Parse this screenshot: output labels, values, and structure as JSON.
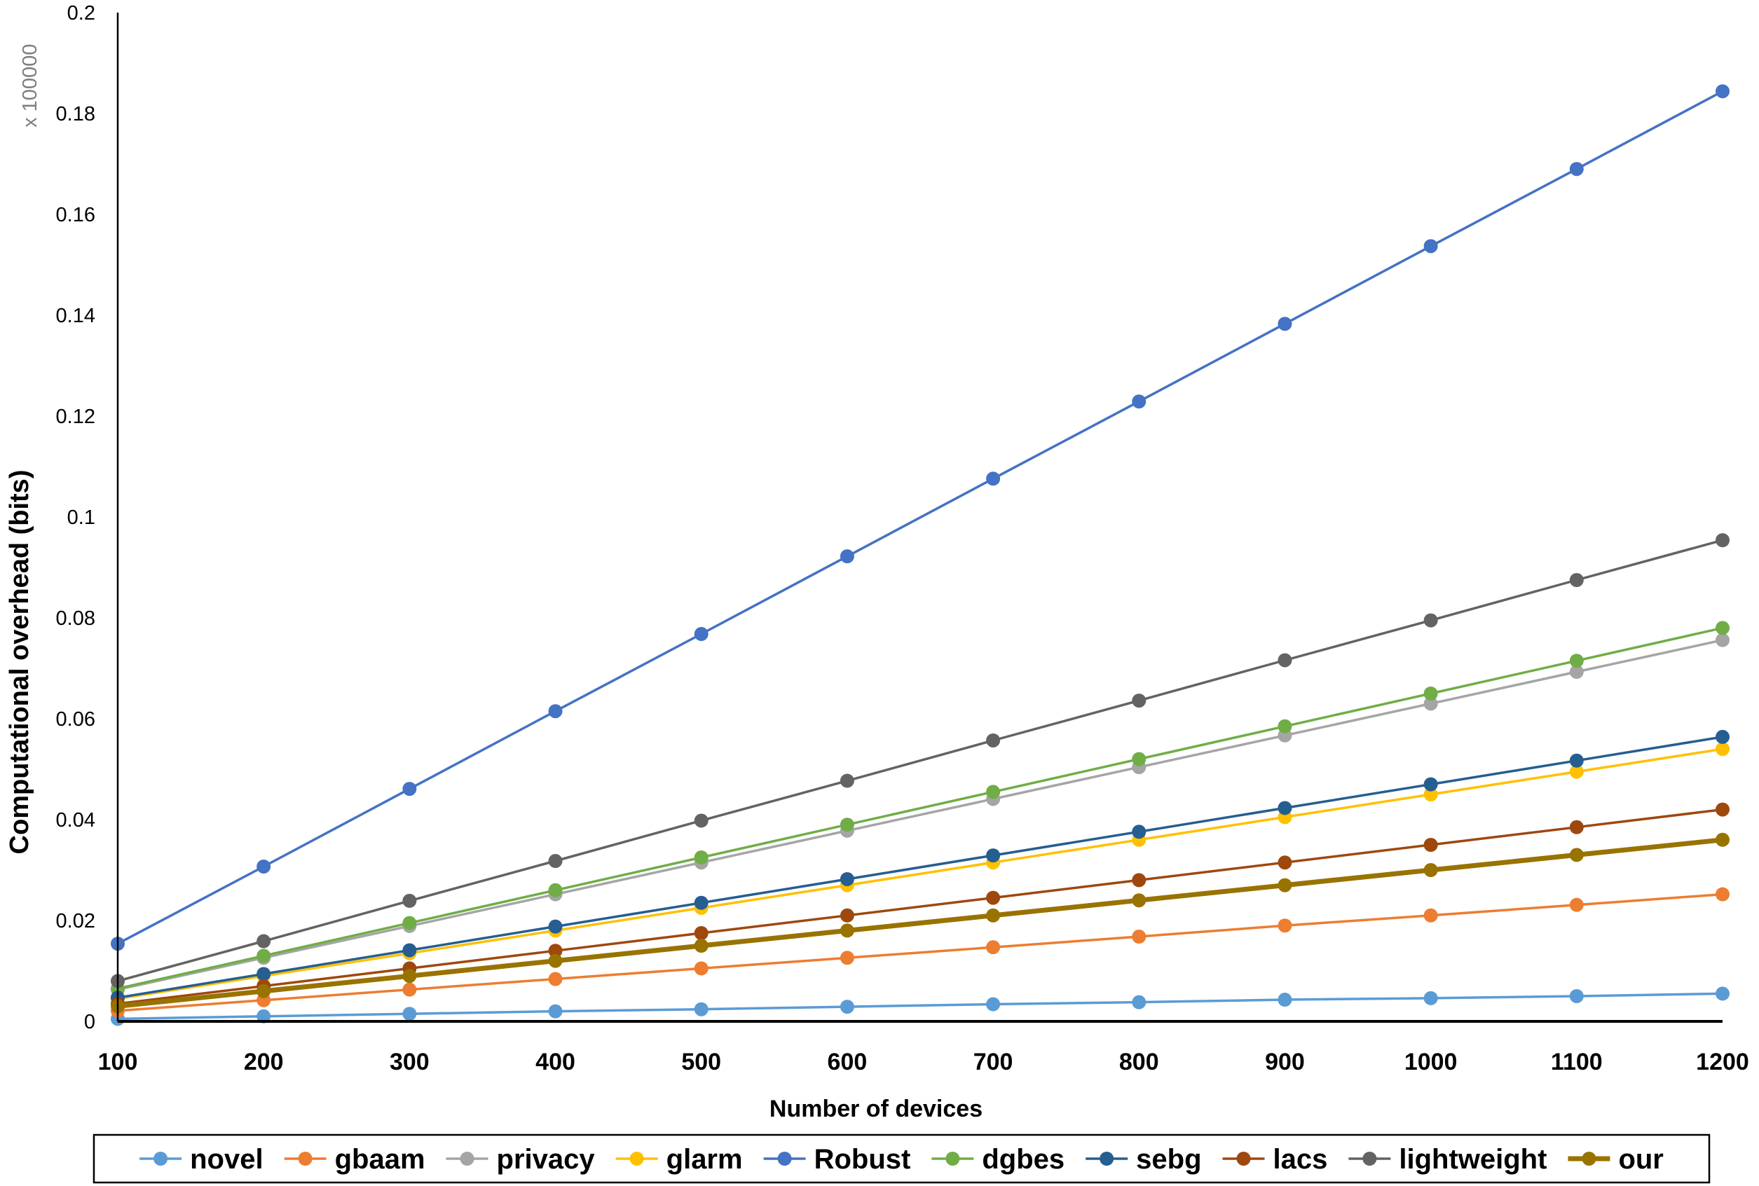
{
  "chart_data": {
    "type": "line",
    "xlabel": "Number of devices",
    "ylabel": "Computational overhead (bits)",
    "y_unit_label": "x 100000",
    "x": [
      100,
      200,
      300,
      400,
      500,
      600,
      700,
      800,
      900,
      1000,
      1100,
      1200
    ],
    "x_tick_labels": [
      "100",
      "200",
      "300",
      "400",
      "500",
      "600",
      "700",
      "800",
      "900",
      "1000",
      "1100",
      "1200"
    ],
    "y_ticks": [
      0,
      0.02,
      0.04,
      0.06,
      0.08,
      0.1,
      0.12,
      0.14,
      0.16,
      0.18,
      0.2
    ],
    "y_tick_labels": [
      "0",
      "0.02",
      "0.04",
      "0.06",
      "0.08",
      "0.1",
      "0.12",
      "0.14",
      "0.16",
      "0.18",
      "0.2"
    ],
    "xlim": [
      100,
      1200
    ],
    "ylim": [
      0,
      0.2
    ],
    "grid": false,
    "legend_position": "bottom",
    "series": [
      {
        "name": "novel",
        "color": "#5b9bd5",
        "values": [
          0.0005,
          0.001,
          0.0015,
          0.002,
          0.0024,
          0.0029,
          0.0034,
          0.0038,
          0.0043,
          0.0046,
          0.005,
          0.0055
        ]
      },
      {
        "name": "gbaam",
        "color": "#ed7d31",
        "values": [
          0.0021,
          0.0042,
          0.0063,
          0.0084,
          0.0105,
          0.0126,
          0.0147,
          0.0168,
          0.019,
          0.021,
          0.0231,
          0.0252
        ]
      },
      {
        "name": "privacy",
        "color": "#a5a5a5",
        "values": [
          0.0063,
          0.0126,
          0.0189,
          0.0252,
          0.0315,
          0.0378,
          0.0441,
          0.0504,
          0.0567,
          0.063,
          0.0693,
          0.0756
        ]
      },
      {
        "name": "glarm",
        "color": "#ffc000",
        "values": [
          0.0045,
          0.009,
          0.0135,
          0.018,
          0.0225,
          0.027,
          0.0315,
          0.036,
          0.0405,
          0.045,
          0.0495,
          0.054
        ]
      },
      {
        "name": "Robust",
        "color": "#4472c4",
        "values": [
          0.0154,
          0.0307,
          0.0461,
          0.0615,
          0.0768,
          0.0922,
          0.1076,
          0.1229,
          0.1383,
          0.1537,
          0.169,
          0.1844
        ]
      },
      {
        "name": "dgbes",
        "color": "#70ad47",
        "values": [
          0.0065,
          0.013,
          0.0195,
          0.026,
          0.0325,
          0.039,
          0.0455,
          0.052,
          0.0585,
          0.065,
          0.0715,
          0.078
        ]
      },
      {
        "name": "sebg",
        "color": "#255e91",
        "values": [
          0.0047,
          0.0094,
          0.0141,
          0.0188,
          0.0235,
          0.0282,
          0.0329,
          0.0376,
          0.0423,
          0.047,
          0.0517,
          0.0564
        ]
      },
      {
        "name": "lacs",
        "color": "#9e480e",
        "values": [
          0.0035,
          0.007,
          0.0105,
          0.014,
          0.0175,
          0.021,
          0.0245,
          0.028,
          0.0315,
          0.035,
          0.0385,
          0.042
        ]
      },
      {
        "name": "lightweight",
        "color": "#636363",
        "values": [
          0.008,
          0.0159,
          0.0239,
          0.0318,
          0.0398,
          0.0477,
          0.0557,
          0.0636,
          0.0716,
          0.0795,
          0.0875,
          0.0954
        ]
      },
      {
        "name": "our",
        "color": "#997300",
        "values": [
          0.003,
          0.006,
          0.009,
          0.012,
          0.015,
          0.018,
          0.021,
          0.024,
          0.027,
          0.03,
          0.033,
          0.036
        ]
      }
    ]
  }
}
